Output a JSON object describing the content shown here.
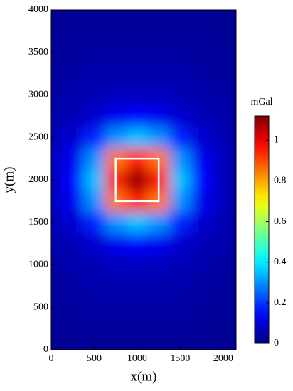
{
  "chart_data": {
    "type": "heatmap",
    "x_label": "x(m)",
    "y_label": "y(m)",
    "colorbar_label": "mGal",
    "colormap": "jet",
    "xlim": [
      0,
      2150
    ],
    "xticks": [
      0,
      500,
      1000,
      1500,
      2000
    ],
    "ylim": [
      0,
      4000
    ],
    "yticks": [
      0,
      500,
      1000,
      1500,
      2000,
      2500,
      3000,
      3500,
      4000
    ],
    "clim": [
      0,
      1.12
    ],
    "cticks": [
      0,
      0.2,
      0.4,
      0.6,
      0.8,
      1
    ],
    "x": [
      0,
      250,
      500,
      750,
      1000,
      1250,
      1500,
      1750,
      2000
    ],
    "y": [
      0,
      250,
      500,
      750,
      1000,
      1250,
      1500,
      1750,
      2000,
      2250,
      2500,
      2750,
      3000,
      3250,
      3500,
      3750,
      4000
    ],
    "z": [
      [
        0.02,
        0.02,
        0.02,
        0.02,
        0.02,
        0.02,
        0.02,
        0.02,
        0.02
      ],
      [
        0.02,
        0.03,
        0.03,
        0.03,
        0.03,
        0.03,
        0.03,
        0.03,
        0.02
      ],
      [
        0.03,
        0.03,
        0.04,
        0.04,
        0.04,
        0.04,
        0.04,
        0.03,
        0.03
      ],
      [
        0.03,
        0.04,
        0.05,
        0.05,
        0.05,
        0.05,
        0.05,
        0.04,
        0.03
      ],
      [
        0.04,
        0.05,
        0.06,
        0.07,
        0.07,
        0.07,
        0.06,
        0.05,
        0.04
      ],
      [
        0.05,
        0.06,
        0.09,
        0.12,
        0.14,
        0.12,
        0.09,
        0.06,
        0.05
      ],
      [
        0.06,
        0.09,
        0.18,
        0.3,
        0.35,
        0.3,
        0.18,
        0.09,
        0.06
      ],
      [
        0.07,
        0.12,
        0.3,
        0.85,
        0.95,
        0.85,
        0.3,
        0.12,
        0.07
      ],
      [
        0.07,
        0.14,
        0.35,
        0.95,
        1.1,
        0.95,
        0.35,
        0.14,
        0.07
      ],
      [
        0.07,
        0.12,
        0.3,
        0.85,
        0.95,
        0.85,
        0.3,
        0.12,
        0.07
      ],
      [
        0.06,
        0.09,
        0.18,
        0.3,
        0.35,
        0.3,
        0.18,
        0.09,
        0.06
      ],
      [
        0.05,
        0.06,
        0.09,
        0.12,
        0.14,
        0.12,
        0.09,
        0.06,
        0.05
      ],
      [
        0.04,
        0.05,
        0.06,
        0.07,
        0.07,
        0.07,
        0.06,
        0.05,
        0.04
      ],
      [
        0.03,
        0.04,
        0.05,
        0.05,
        0.05,
        0.05,
        0.05,
        0.04,
        0.03
      ],
      [
        0.03,
        0.03,
        0.04,
        0.04,
        0.04,
        0.04,
        0.04,
        0.03,
        0.03
      ],
      [
        0.02,
        0.03,
        0.03,
        0.03,
        0.03,
        0.03,
        0.03,
        0.03,
        0.02
      ],
      [
        0.02,
        0.02,
        0.02,
        0.02,
        0.02,
        0.02,
        0.02,
        0.02,
        0.02
      ]
    ],
    "outline": {
      "x": [
        750,
        1250
      ],
      "y": [
        1750,
        2250
      ],
      "color": "#ffffff"
    }
  }
}
